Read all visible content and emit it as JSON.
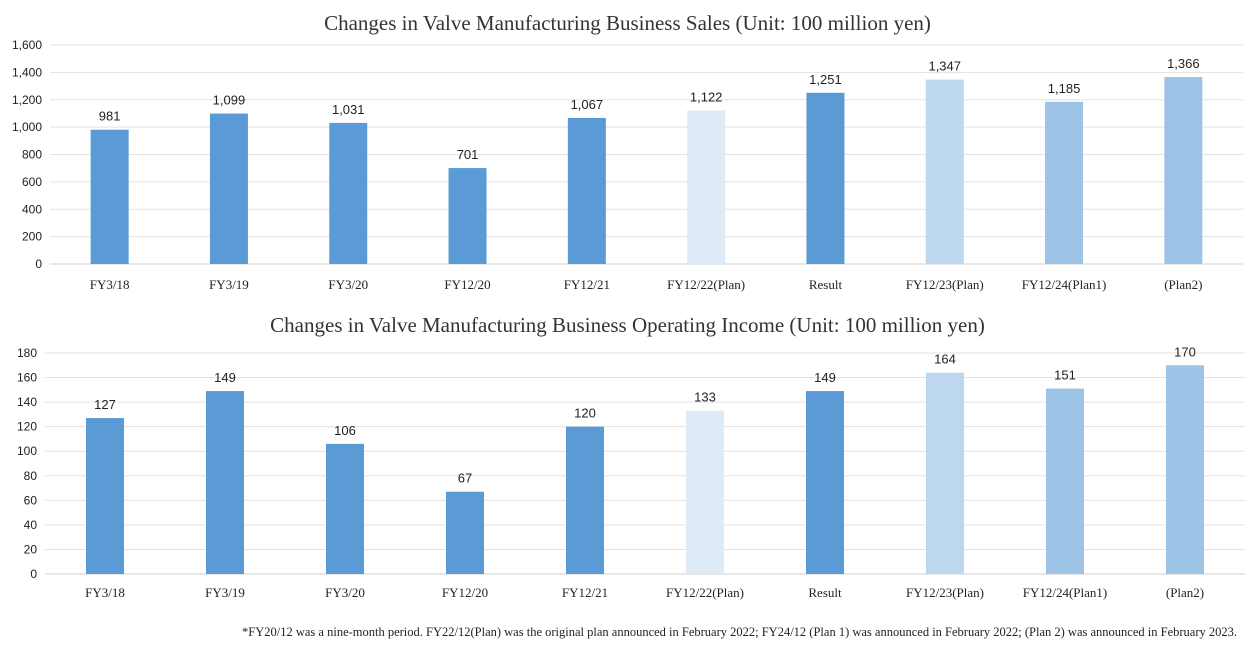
{
  "chart_data": [
    {
      "type": "bar",
      "title": "Changes in Valve Manufacturing Business Sales (Unit: 100 million yen)",
      "categories": [
        "FY3/18",
        "FY3/19",
        "FY3/20",
        "FY12/20",
        "FY12/21",
        "FY12/22(Plan)",
        "Result",
        "FY12/23(Plan)",
        "FY12/24(Plan1)",
        "(Plan2)"
      ],
      "values": [
        981,
        1099,
        1031,
        701,
        1067,
        1122,
        1251,
        1347,
        1185,
        1366
      ],
      "value_labels": [
        "981",
        "1,099",
        "1,031",
        "701",
        "1,067",
        "1,122",
        "1,251",
        "1,347",
        "1,185",
        "1,366"
      ],
      "bar_colors": [
        "#5b9bd5",
        "#5b9bd5",
        "#5b9bd5",
        "#5b9bd5",
        "#5b9bd5",
        "#deebf7",
        "#5b9bd5",
        "#bdd7ee",
        "#9dc3e6",
        "#9dc3e6"
      ],
      "ylim": [
        0,
        1600
      ],
      "yticks": [
        0,
        200,
        400,
        600,
        800,
        1000,
        1200,
        1400,
        1600
      ],
      "ytick_labels": [
        "0",
        "200",
        "400",
        "600",
        "800",
        "1,000",
        "1,200",
        "1,400",
        "1,600"
      ],
      "grid": true,
      "xlabel": "",
      "ylabel": ""
    },
    {
      "type": "bar",
      "title": "Changes in Valve Manufacturing Business Operating Income (Unit: 100 million yen)",
      "categories": [
        "FY3/18",
        "FY3/19",
        "FY3/20",
        "FY12/20",
        "FY12/21",
        "FY12/22(Plan)",
        "Result",
        "FY12/23(Plan)",
        "FY12/24(Plan1)",
        "(Plan2)"
      ],
      "values": [
        127,
        149,
        106,
        67,
        120,
        133,
        149,
        164,
        151,
        170
      ],
      "value_labels": [
        "127",
        "149",
        "106",
        "67",
        "120",
        "133",
        "149",
        "164",
        "151",
        "170"
      ],
      "bar_colors": [
        "#5b9bd5",
        "#5b9bd5",
        "#5b9bd5",
        "#5b9bd5",
        "#5b9bd5",
        "#deebf7",
        "#5b9bd5",
        "#bdd7ee",
        "#9dc3e6",
        "#9dc3e6"
      ],
      "ylim": [
        0,
        180
      ],
      "yticks": [
        0,
        20,
        40,
        60,
        80,
        100,
        120,
        140,
        160,
        180
      ],
      "ytick_labels": [
        "0",
        "20",
        "40",
        "60",
        "80",
        "100",
        "120",
        "140",
        "160",
        "180"
      ],
      "grid": true,
      "xlabel": "",
      "ylabel": ""
    }
  ],
  "footnote": "*FY20/12 was a nine-month period. FY22/12(Plan) was the original plan announced in February 2022; FY24/12 (Plan 1) was announced in February 2022; (Plan 2) was announced in February 2023."
}
